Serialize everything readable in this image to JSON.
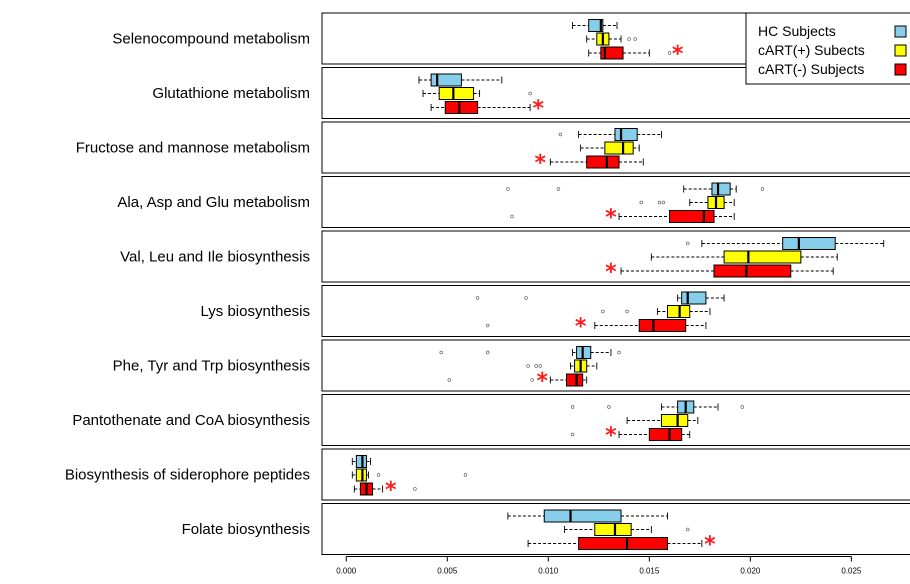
{
  "chart_data": {
    "type": "boxplot",
    "orientation": "horizontal",
    "title": "",
    "xlabel": "",
    "ylabel": "",
    "xlim": [
      -0.0012,
      0.028
    ],
    "xticks": [
      "0.000",
      "0.005",
      "0.010",
      "0.015",
      "0.020",
      "0.025"
    ],
    "xtick_values": [
      0.0,
      0.005,
      0.01,
      0.015,
      0.02,
      0.025
    ],
    "legend": {
      "position": "top-right",
      "entries": [
        {
          "label": "HC Subjects",
          "color": "#87ceeb"
        },
        {
          "label": "cART(+) Subects",
          "color": "#ffff00"
        },
        {
          "label": "cART(-) Subjects",
          "color": "#ff0000"
        }
      ]
    },
    "series_colors": [
      "#87ceeb",
      "#ffff00",
      "#ff0000"
    ],
    "significance_marker": "*",
    "categories": [
      {
        "name": "Selenocompound metabolism",
        "boxes": [
          {
            "wlo": 0.0112,
            "q1": 0.012,
            "med": 0.0126,
            "q3": 0.0127,
            "whi": 0.0134,
            "out": []
          },
          {
            "wlo": 0.0119,
            "q1": 0.0124,
            "med": 0.0127,
            "q3": 0.013,
            "whi": 0.0136,
            "out": [
              0.014,
              0.0143
            ]
          },
          {
            "wlo": 0.012,
            "q1": 0.0126,
            "med": 0.0128,
            "q3": 0.0137,
            "whi": 0.015,
            "out": [
              0.016
            ]
          }
        ],
        "star": 0.0164
      },
      {
        "name": "Glutathione metabolism",
        "boxes": [
          {
            "wlo": 0.0036,
            "q1": 0.0042,
            "med": 0.0045,
            "q3": 0.0057,
            "whi": 0.0077,
            "out": []
          },
          {
            "wlo": 0.0038,
            "q1": 0.0046,
            "med": 0.0053,
            "q3": 0.0063,
            "whi": 0.0066,
            "out": [
              0.0091
            ]
          },
          {
            "wlo": 0.0042,
            "q1": 0.0049,
            "med": 0.0056,
            "q3": 0.0065,
            "whi": 0.0091,
            "out": []
          }
        ],
        "star": 0.0095
      },
      {
        "name": "Fructose and mannose metabolism",
        "boxes": [
          {
            "wlo": 0.0115,
            "q1": 0.0133,
            "med": 0.0136,
            "q3": 0.0144,
            "whi": 0.0156,
            "out": [
              0.0106
            ]
          },
          {
            "wlo": 0.0116,
            "q1": 0.0128,
            "med": 0.0137,
            "q3": 0.0142,
            "whi": 0.0145,
            "out": []
          },
          {
            "wlo": 0.0101,
            "q1": 0.0119,
            "med": 0.0129,
            "q3": 0.0135,
            "whi": 0.0147,
            "out": []
          }
        ],
        "star": 0.0096
      },
      {
        "name": "Ala, Asp and Glu metabolism",
        "boxes": [
          {
            "wlo": 0.0167,
            "q1": 0.0181,
            "med": 0.0184,
            "q3": 0.019,
            "whi": 0.0193,
            "out": [
              0.008,
              0.0105,
              0.0206
            ]
          },
          {
            "wlo": 0.017,
            "q1": 0.0179,
            "med": 0.0183,
            "q3": 0.0187,
            "whi": 0.0192,
            "out": [
              0.0146,
              0.0155,
              0.0157
            ]
          },
          {
            "wlo": 0.0135,
            "q1": 0.016,
            "med": 0.0177,
            "q3": 0.0182,
            "whi": 0.0192,
            "out": [
              0.0082
            ]
          }
        ],
        "star": 0.0131
      },
      {
        "name": "Val, Leu and Ile biosynthesis",
        "boxes": [
          {
            "wlo": 0.0176,
            "q1": 0.0216,
            "med": 0.0224,
            "q3": 0.0242,
            "whi": 0.0266,
            "out": [
              0.0169
            ]
          },
          {
            "wlo": 0.0151,
            "q1": 0.0187,
            "med": 0.0199,
            "q3": 0.0225,
            "whi": 0.0243,
            "out": []
          },
          {
            "wlo": 0.0136,
            "q1": 0.0182,
            "med": 0.0198,
            "q3": 0.022,
            "whi": 0.0241,
            "out": []
          }
        ],
        "star": 0.0131
      },
      {
        "name": "Lys biosynthesis",
        "boxes": [
          {
            "wlo": 0.0164,
            "q1": 0.0166,
            "med": 0.0169,
            "q3": 0.0178,
            "whi": 0.0187,
            "out": [
              0.0065,
              0.0089
            ]
          },
          {
            "wlo": 0.0154,
            "q1": 0.0159,
            "med": 0.0165,
            "q3": 0.017,
            "whi": 0.018,
            "out": [
              0.0127,
              0.0139
            ]
          },
          {
            "wlo": 0.0123,
            "q1": 0.0145,
            "med": 0.0152,
            "q3": 0.0168,
            "whi": 0.0178,
            "out": [
              0.007
            ]
          }
        ],
        "star": 0.0116
      },
      {
        "name": "Phe, Tyr and Trp biosynthesis",
        "boxes": [
          {
            "wlo": 0.0112,
            "q1": 0.0114,
            "med": 0.0117,
            "q3": 0.0121,
            "whi": 0.0131,
            "out": [
              0.0047,
              0.007,
              0.0135
            ]
          },
          {
            "wlo": 0.0111,
            "q1": 0.0113,
            "med": 0.0116,
            "q3": 0.0119,
            "whi": 0.0124,
            "out": [
              0.009,
              0.0094,
              0.0096
            ]
          },
          {
            "wlo": 0.0101,
            "q1": 0.0109,
            "med": 0.0114,
            "q3": 0.0117,
            "whi": 0.0119,
            "out": [
              0.0051,
              0.0092
            ]
          }
        ],
        "star": 0.0097
      },
      {
        "name": "Pantothenate and CoA biosynthesis",
        "boxes": [
          {
            "wlo": 0.0156,
            "q1": 0.0164,
            "med": 0.0168,
            "q3": 0.0172,
            "whi": 0.0184,
            "out": [
              0.0112,
              0.013,
              0.0196
            ]
          },
          {
            "wlo": 0.0139,
            "q1": 0.0156,
            "med": 0.0164,
            "q3": 0.0169,
            "whi": 0.0174,
            "out": []
          },
          {
            "wlo": 0.0135,
            "q1": 0.015,
            "med": 0.016,
            "q3": 0.0166,
            "whi": 0.017,
            "out": [
              0.0112
            ]
          }
        ],
        "star": 0.0131
      },
      {
        "name": "Biosynthesis of siderophore peptides",
        "boxes": [
          {
            "wlo": 0.0003,
            "q1": 0.0005,
            "med": 0.0008,
            "q3": 0.001,
            "whi": 0.0012,
            "out": []
          },
          {
            "wlo": 0.0003,
            "q1": 0.0005,
            "med": 0.0008,
            "q3": 0.001,
            "whi": 0.0011,
            "out": [
              0.0059,
              0.0016
            ]
          },
          {
            "wlo": 0.0004,
            "q1": 0.0007,
            "med": 0.001,
            "q3": 0.0013,
            "whi": 0.0018,
            "out": [
              0.0034
            ]
          }
        ],
        "star": 0.0022
      },
      {
        "name": "Folate biosynthesis",
        "boxes": [
          {
            "wlo": 0.008,
            "q1": 0.0098,
            "med": 0.0111,
            "q3": 0.0136,
            "whi": 0.0159,
            "out": []
          },
          {
            "wlo": 0.0108,
            "q1": 0.0123,
            "med": 0.0133,
            "q3": 0.0141,
            "whi": 0.0151,
            "out": [
              0.0169
            ]
          },
          {
            "wlo": 0.009,
            "q1": 0.0115,
            "med": 0.0139,
            "q3": 0.0159,
            "whi": 0.0176,
            "out": []
          }
        ],
        "star": 0.018
      }
    ]
  }
}
